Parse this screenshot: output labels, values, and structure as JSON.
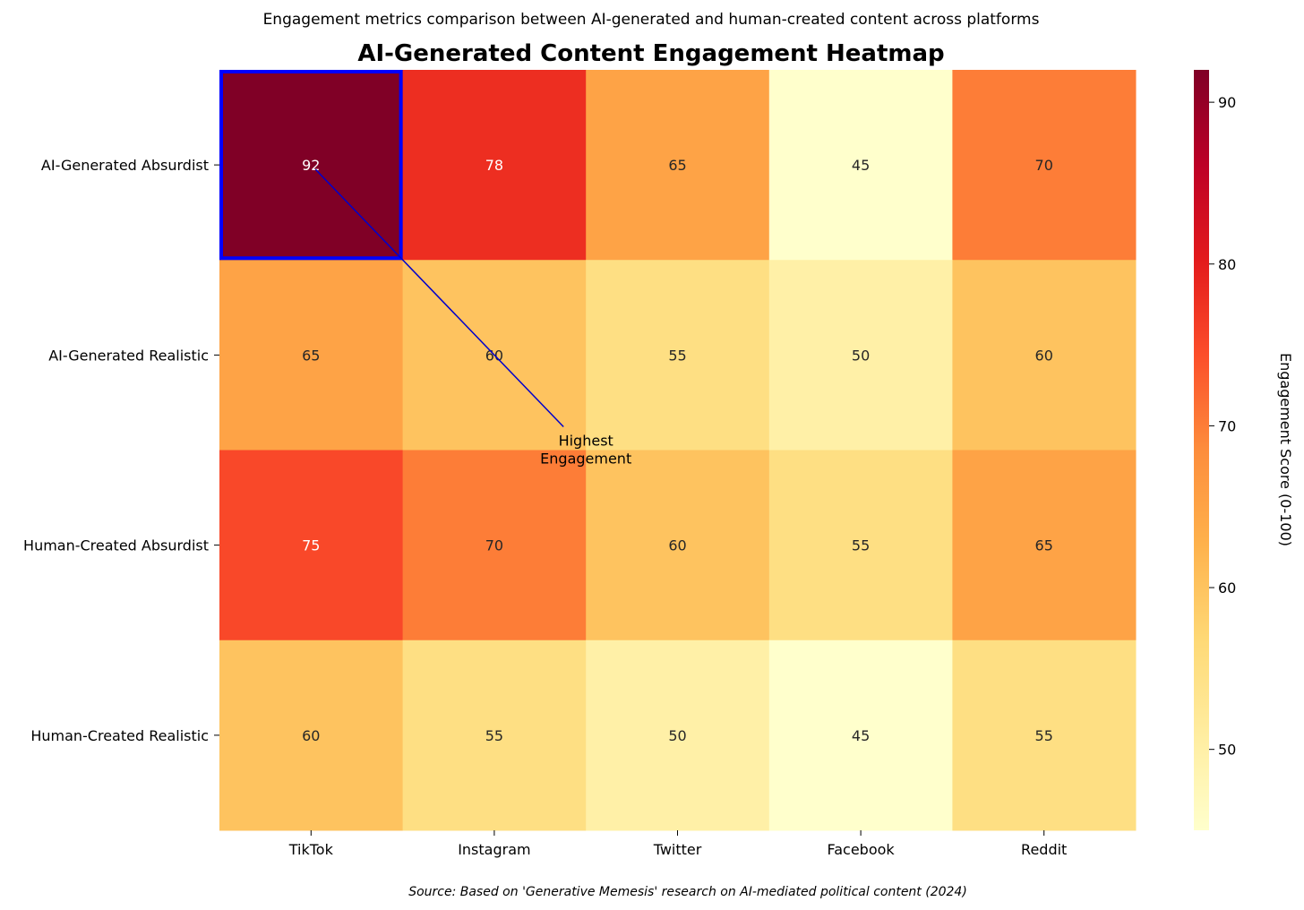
{
  "chart_data": {
    "type": "heatmap",
    "subtitle": "Engagement metrics comparison between AI-generated and human-created content across platforms",
    "title": "AI-Generated Content Engagement Heatmap",
    "source": "Source: Based on 'Generative Memesis' research on AI-mediated political content (2024)",
    "rows": [
      "AI-Generated Absurdist",
      "AI-Generated Realistic",
      "Human-Created Absurdist",
      "Human-Created Realistic"
    ],
    "columns": [
      "TikTok",
      "Instagram",
      "Twitter",
      "Facebook",
      "Reddit"
    ],
    "values": [
      [
        92,
        78,
        65,
        45,
        70
      ],
      [
        65,
        60,
        55,
        50,
        60
      ],
      [
        75,
        70,
        60,
        55,
        65
      ],
      [
        60,
        55,
        50,
        45,
        55
      ]
    ],
    "colormap": "YlOrRd",
    "vmin": 45,
    "vmax": 92,
    "colorbar": {
      "label": "Engagement Score (0-100)",
      "ticks": [
        50,
        60,
        70,
        80,
        90
      ]
    },
    "highlight": {
      "row": 0,
      "col": 0,
      "color": "#0000ff"
    },
    "annotation": {
      "text_lines": [
        "Highest",
        "Engagement"
      ],
      "color": "#0000cc"
    }
  }
}
